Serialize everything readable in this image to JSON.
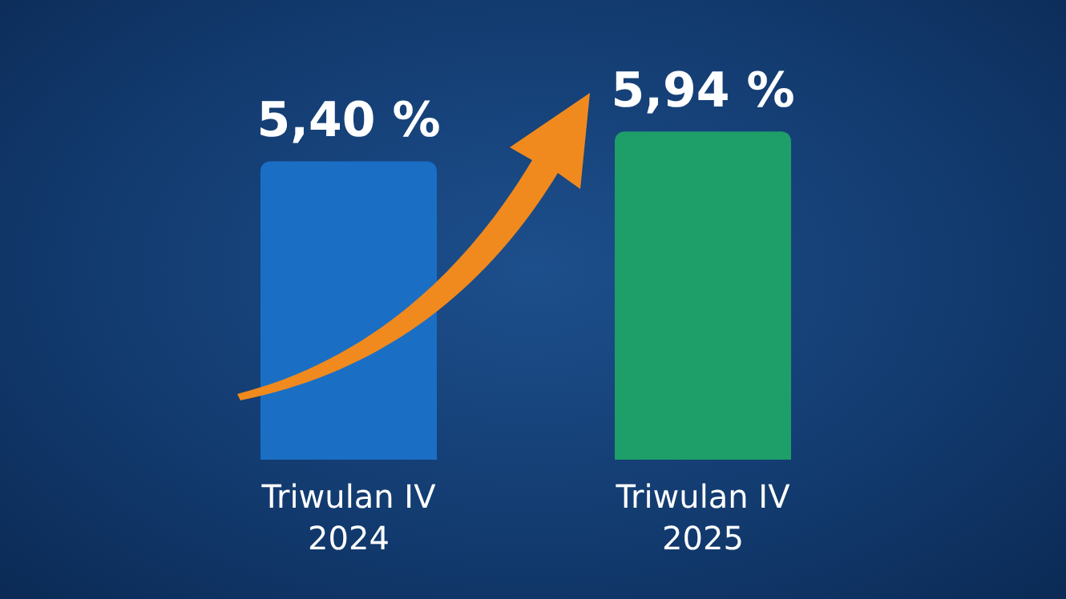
{
  "chart_data": {
    "type": "bar",
    "categories": [
      "Triwulan IV\n2024",
      "Triwulan IV\n2025"
    ],
    "values": [
      5.4,
      5.94
    ],
    "colors": [
      "#1a6fc4",
      "#1e9e68"
    ],
    "value_labels": [
      "5,40 %",
      "5,94 %"
    ],
    "tick_labels": "x"
  }
}
